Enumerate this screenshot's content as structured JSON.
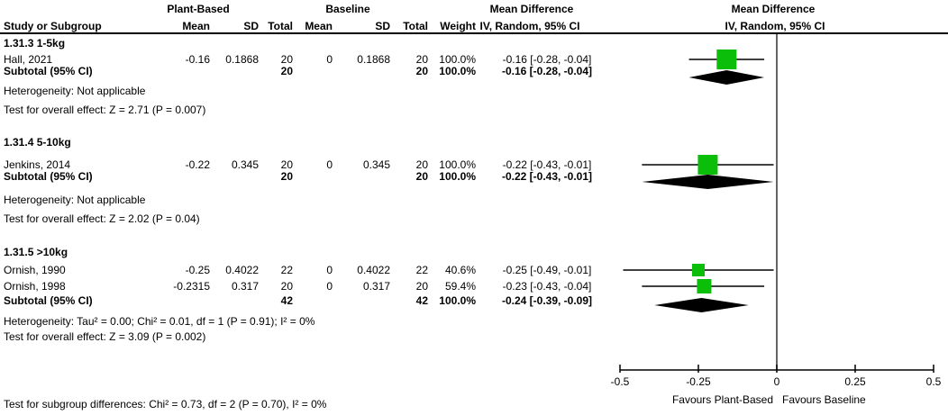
{
  "table": {
    "plant_header": "Plant-Based",
    "baseline_header": "Baseline",
    "effect_header": {
      "line1": "Mean Difference",
      "line2": "IV, Random, 95% CI"
    },
    "plot_header": {
      "line1": "Mean Difference",
      "line2": "IV, Random, 95% CI"
    },
    "columns": [
      "Study or Subgroup",
      "Mean",
      "SD",
      "Total",
      "Mean",
      "SD",
      "Total",
      "Weight"
    ]
  },
  "chart_data": {
    "type": "forest",
    "effect_measure": "Mean Difference, IV, Random, 95% CI",
    "x_axis": {
      "min": -0.5,
      "max": 0.5,
      "ticks": [
        -0.5,
        -0.25,
        0,
        0.25,
        0.5
      ],
      "tick_labels": [
        "-0.5",
        "-0.25",
        "0",
        "0.25",
        "0.5"
      ]
    },
    "favours_left": "Favours Plant-Based",
    "favours_right": "Favours Baseline",
    "subgroups": [
      {
        "label": "1.31.3 1-5kg",
        "studies": [
          {
            "name": "Hall, 2021",
            "mean1": "-0.16",
            "sd1": "0.1868",
            "total1": "20",
            "mean2": "0",
            "sd2": "0.1868",
            "total2": "20",
            "weight": "100.0%",
            "ci_text": "-0.16 [-0.28, -0.04]",
            "est": -0.16,
            "lo": -0.28,
            "hi": -0.04,
            "weight_pct": 100.0
          }
        ],
        "subtotal": {
          "label": "Subtotal (95% CI)",
          "total1": "20",
          "total2": "20",
          "weight": "100.0%",
          "ci_text": "-0.16 [-0.28, -0.04]",
          "est": -0.16,
          "lo": -0.28,
          "hi": -0.04
        },
        "heterogeneity": "Heterogeneity: Not applicable",
        "overall_effect": "Test for overall effect: Z = 2.71 (P = 0.007)"
      },
      {
        "label": "1.31.4 5-10kg",
        "studies": [
          {
            "name": "Jenkins, 2014",
            "mean1": "-0.22",
            "sd1": "0.345",
            "total1": "20",
            "mean2": "0",
            "sd2": "0.345",
            "total2": "20",
            "weight": "100.0%",
            "ci_text": "-0.22 [-0.43, -0.01]",
            "est": -0.22,
            "lo": -0.43,
            "hi": -0.01,
            "weight_pct": 100.0
          }
        ],
        "subtotal": {
          "label": "Subtotal (95% CI)",
          "total1": "20",
          "total2": "20",
          "weight": "100.0%",
          "ci_text": "-0.22 [-0.43, -0.01]",
          "est": -0.22,
          "lo": -0.43,
          "hi": -0.01
        },
        "heterogeneity": "Heterogeneity: Not applicable",
        "overall_effect": "Test for overall effect: Z = 2.02 (P = 0.04)"
      },
      {
        "label": "1.31.5 >10kg",
        "studies": [
          {
            "name": "Ornish, 1990",
            "mean1": "-0.25",
            "sd1": "0.4022",
            "total1": "22",
            "mean2": "0",
            "sd2": "0.4022",
            "total2": "22",
            "weight": "40.6%",
            "ci_text": "-0.25 [-0.49, -0.01]",
            "est": -0.25,
            "lo": -0.49,
            "hi": -0.01,
            "weight_pct": 40.6
          },
          {
            "name": "Ornish, 1998",
            "mean1": "-0.2315",
            "sd1": "0.317",
            "total1": "20",
            "mean2": "0",
            "sd2": "0.317",
            "total2": "20",
            "weight": "59.4%",
            "ci_text": "-0.23 [-0.43, -0.04]",
            "est": -0.2315,
            "lo": -0.43,
            "hi": -0.04,
            "weight_pct": 59.4
          }
        ],
        "subtotal": {
          "label": "Subtotal (95% CI)",
          "total1": "42",
          "total2": "42",
          "weight": "100.0%",
          "ci_text": "-0.24 [-0.39, -0.09]",
          "est": -0.24,
          "lo": -0.39,
          "hi": -0.09
        },
        "heterogeneity": "Heterogeneity: Tau² = 0.00; Chi² = 0.01, df = 1 (P = 0.91); I² = 0%",
        "overall_effect": "Test for overall effect: Z = 3.09 (P = 0.002)"
      }
    ],
    "footer": "Test for subgroup differences: Chi² = 0.73, df = 2 (P = 0.70), I² = 0%",
    "colors": {
      "square": "#0ABE0A",
      "diamond": "#000000",
      "ci_line": "#000000",
      "zero_line": "#3f3f3f",
      "axis": "#000000"
    }
  }
}
